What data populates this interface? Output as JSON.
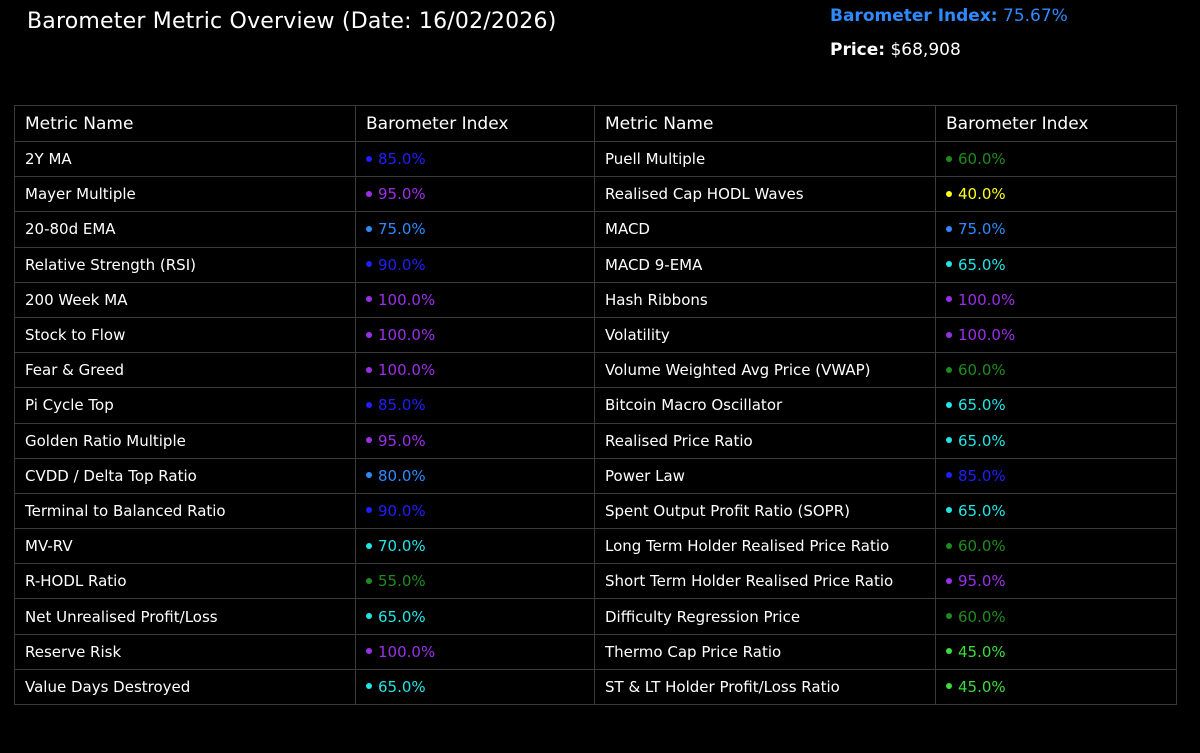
{
  "header": {
    "title": "Barometer Metric Overview (Date: 16/02/2026)"
  },
  "summary": {
    "index_label": "Barometer Index:",
    "index_value": "75.67%",
    "price_label": "Price:",
    "price_value": "$68,908"
  },
  "colors": {
    "blue": "#1f1fff",
    "purple": "#9b30e8",
    "sky": "#2e8bff",
    "cyan": "#22e6e6",
    "green": "#1e8c1e",
    "lime": "#3bdc3b",
    "yellow": "#ffff1a"
  },
  "table": {
    "headers": [
      "Metric Name",
      "Barometer Index",
      "Metric Name",
      "Barometer Index"
    ],
    "rows": [
      {
        "left_name": "2Y MA",
        "left_value": "85.0%",
        "left_color": "blue",
        "right_name": "Puell Multiple",
        "right_value": "60.0%",
        "right_color": "green"
      },
      {
        "left_name": "Mayer Multiple",
        "left_value": "95.0%",
        "left_color": "purple",
        "right_name": "Realised Cap HODL Waves",
        "right_value": "40.0%",
        "right_color": "yellow"
      },
      {
        "left_name": "20-80d EMA",
        "left_value": "75.0%",
        "left_color": "sky",
        "right_name": "MACD",
        "right_value": "75.0%",
        "right_color": "sky"
      },
      {
        "left_name": "Relative Strength (RSI)",
        "left_value": "90.0%",
        "left_color": "blue",
        "right_name": "MACD 9-EMA",
        "right_value": "65.0%",
        "right_color": "cyan"
      },
      {
        "left_name": "200 Week MA",
        "left_value": "100.0%",
        "left_color": "purple",
        "right_name": "Hash Ribbons",
        "right_value": "100.0%",
        "right_color": "purple"
      },
      {
        "left_name": "Stock to Flow",
        "left_value": "100.0%",
        "left_color": "purple",
        "right_name": "Volatility",
        "right_value": "100.0%",
        "right_color": "purple"
      },
      {
        "left_name": "Fear & Greed",
        "left_value": "100.0%",
        "left_color": "purple",
        "right_name": "Volume Weighted Avg Price (VWAP)",
        "right_value": "60.0%",
        "right_color": "green"
      },
      {
        "left_name": "Pi Cycle Top",
        "left_value": "85.0%",
        "left_color": "blue",
        "right_name": "Bitcoin Macro Oscillator",
        "right_value": "65.0%",
        "right_color": "cyan"
      },
      {
        "left_name": "Golden Ratio Multiple",
        "left_value": "95.0%",
        "left_color": "purple",
        "right_name": "Realised Price Ratio",
        "right_value": "65.0%",
        "right_color": "cyan"
      },
      {
        "left_name": "CVDD / Delta Top Ratio",
        "left_value": "80.0%",
        "left_color": "sky",
        "right_name": "Power Law",
        "right_value": "85.0%",
        "right_color": "blue"
      },
      {
        "left_name": "Terminal to Balanced Ratio",
        "left_value": "90.0%",
        "left_color": "blue",
        "right_name": "Spent Output Profit Ratio (SOPR)",
        "right_value": "65.0%",
        "right_color": "cyan"
      },
      {
        "left_name": "MV-RV",
        "left_value": "70.0%",
        "left_color": "cyan",
        "right_name": "Long Term Holder Realised Price Ratio",
        "right_value": "60.0%",
        "right_color": "green"
      },
      {
        "left_name": "R-HODL Ratio",
        "left_value": "55.0%",
        "left_color": "green",
        "right_name": "Short Term Holder Realised Price Ratio",
        "right_value": "95.0%",
        "right_color": "purple"
      },
      {
        "left_name": "Net Unrealised Profit/Loss",
        "left_value": "65.0%",
        "left_color": "cyan",
        "right_name": "Difficulty Regression Price",
        "right_value": "60.0%",
        "right_color": "green"
      },
      {
        "left_name": "Reserve Risk",
        "left_value": "100.0%",
        "left_color": "purple",
        "right_name": "Thermo Cap Price Ratio",
        "right_value": "45.0%",
        "right_color": "lime"
      },
      {
        "left_name": "Value Days Destroyed",
        "left_value": "65.0%",
        "left_color": "cyan",
        "right_name": "ST & LT Holder Profit/Loss Ratio",
        "right_value": "45.0%",
        "right_color": "lime"
      }
    ]
  }
}
